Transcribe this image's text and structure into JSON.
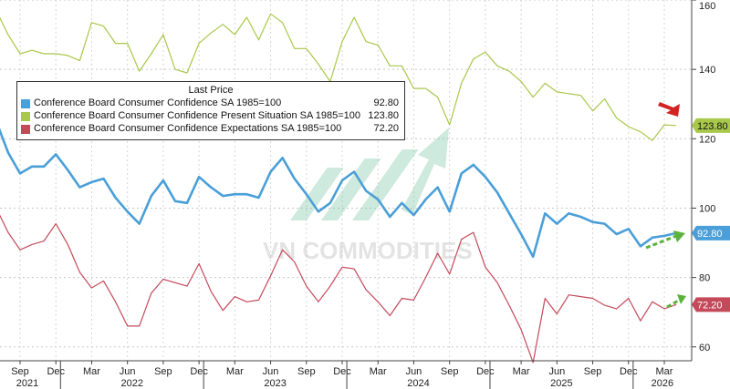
{
  "chart_data": {
    "type": "line",
    "title": "",
    "xlabel": "",
    "ylabel": "",
    "ylim": [
      56,
      160
    ],
    "yticks": [
      60,
      80,
      100,
      120,
      140,
      160
    ],
    "grid": true,
    "legend": {
      "title": "Last Price",
      "placement": "top-left"
    },
    "x_month_labels": [
      "Sep",
      "Dec",
      "Mar",
      "Jun",
      "Sep",
      "Dec",
      "Mar",
      "Jun",
      "Sep",
      "Dec",
      "Mar",
      "Jun",
      "Sep",
      "Dec",
      "Mar",
      "Jun",
      "Sep",
      "Dec",
      "Mar"
    ],
    "x_year_labels": [
      "2021",
      "2022",
      "2023",
      "2024",
      "2025",
      "2026"
    ],
    "x": [
      "2021-07",
      "2021-08",
      "2021-09",
      "2021-10",
      "2021-11",
      "2021-12",
      "2022-01",
      "2022-02",
      "2022-03",
      "2022-04",
      "2022-05",
      "2022-06",
      "2022-07",
      "2022-08",
      "2022-09",
      "2022-10",
      "2022-11",
      "2022-12",
      "2023-01",
      "2023-02",
      "2023-03",
      "2023-04",
      "2023-05",
      "2023-06",
      "2023-07",
      "2023-08",
      "2023-09",
      "2023-10",
      "2023-11",
      "2023-12",
      "2024-01",
      "2024-02",
      "2024-03",
      "2024-04",
      "2024-05",
      "2024-06",
      "2024-07",
      "2024-08",
      "2024-09",
      "2024-10",
      "2024-11",
      "2024-12",
      "2025-01",
      "2025-02",
      "2025-03",
      "2025-04",
      "2025-05",
      "2025-06",
      "2025-07",
      "2025-08",
      "2025-09",
      "2025-10",
      "2025-11",
      "2025-12",
      "2026-01",
      "2026-02",
      "2026-03",
      "2026-04"
    ],
    "series": [
      {
        "name": "Conference Board Consumer Confidence SA 1985=100",
        "last_value": "92.80",
        "color": "#4a9fd8",
        "values": [
          125.0,
          116.0,
          110.0,
          112.0,
          112.0,
          115.5,
          111.0,
          106.0,
          107.5,
          108.5,
          103.0,
          99.0,
          95.5,
          103.5,
          108.0,
          102.0,
          101.5,
          109.0,
          106.0,
          103.5,
          104.0,
          104.0,
          103.0,
          110.5,
          114.5,
          108.5,
          104.0,
          99.0,
          101.5,
          108.0,
          110.5,
          105.0,
          102.5,
          97.5,
          101.5,
          98.0,
          102.5,
          106.0,
          99.0,
          110.0,
          112.5,
          109.0,
          104.5,
          98.5,
          92.5,
          86.0,
          98.5,
          95.5,
          98.5,
          97.5,
          96.0,
          95.5,
          92.5,
          94.0,
          89.0,
          91.5,
          92.0,
          92.8
        ]
      },
      {
        "name": "Conference Board Consumer Confidence Present Situation SA 1985=100",
        "last_value": "123.80",
        "color": "#a8c84a",
        "values": [
          157.0,
          150.0,
          144.5,
          145.5,
          144.5,
          144.5,
          144.0,
          142.5,
          153.5,
          152.5,
          147.5,
          147.5,
          139.5,
          144.5,
          150.0,
          140.0,
          139.0,
          147.5,
          150.5,
          153.0,
          150.0,
          155.0,
          148.5,
          156.0,
          153.5,
          146.0,
          146.0,
          141.5,
          136.5,
          148.0,
          155.0,
          148.0,
          147.0,
          141.0,
          141.0,
          134.5,
          134.5,
          132.0,
          124.0,
          136.0,
          143.0,
          145.0,
          141.0,
          139.5,
          136.5,
          132.0,
          136.0,
          133.5,
          133.0,
          132.5,
          128.0,
          131.5,
          126.0,
          123.5,
          122.0,
          119.5,
          124.0,
          123.8
        ]
      },
      {
        "name": "Conference Board Consumer Confidence Expectations SA 1985=100",
        "last_value": "72.20",
        "color": "#c44a5a",
        "values": [
          100.0,
          93.0,
          88.0,
          89.5,
          90.5,
          95.5,
          89.5,
          81.5,
          77.0,
          79.0,
          73.0,
          66.0,
          66.0,
          75.5,
          79.5,
          78.5,
          77.5,
          84.0,
          76.0,
          70.5,
          74.5,
          73.0,
          73.5,
          80.5,
          88.0,
          84.5,
          77.5,
          73.0,
          77.5,
          83.0,
          82.5,
          76.5,
          73.0,
          69.0,
          74.0,
          73.5,
          80.0,
          87.0,
          81.0,
          91.0,
          93.0,
          83.0,
          78.5,
          72.0,
          65.0,
          55.5,
          74.0,
          69.5,
          75.0,
          74.5,
          74.0,
          72.0,
          71.0,
          74.0,
          67.5,
          73.0,
          71.0,
          72.2
        ]
      }
    ],
    "annotations": {
      "watermark": "VN COMMODITIES",
      "arrows": [
        "red-down-right-arrow",
        "green-dashed-up-arrow",
        "green-dashed-up-arrow"
      ]
    }
  }
}
